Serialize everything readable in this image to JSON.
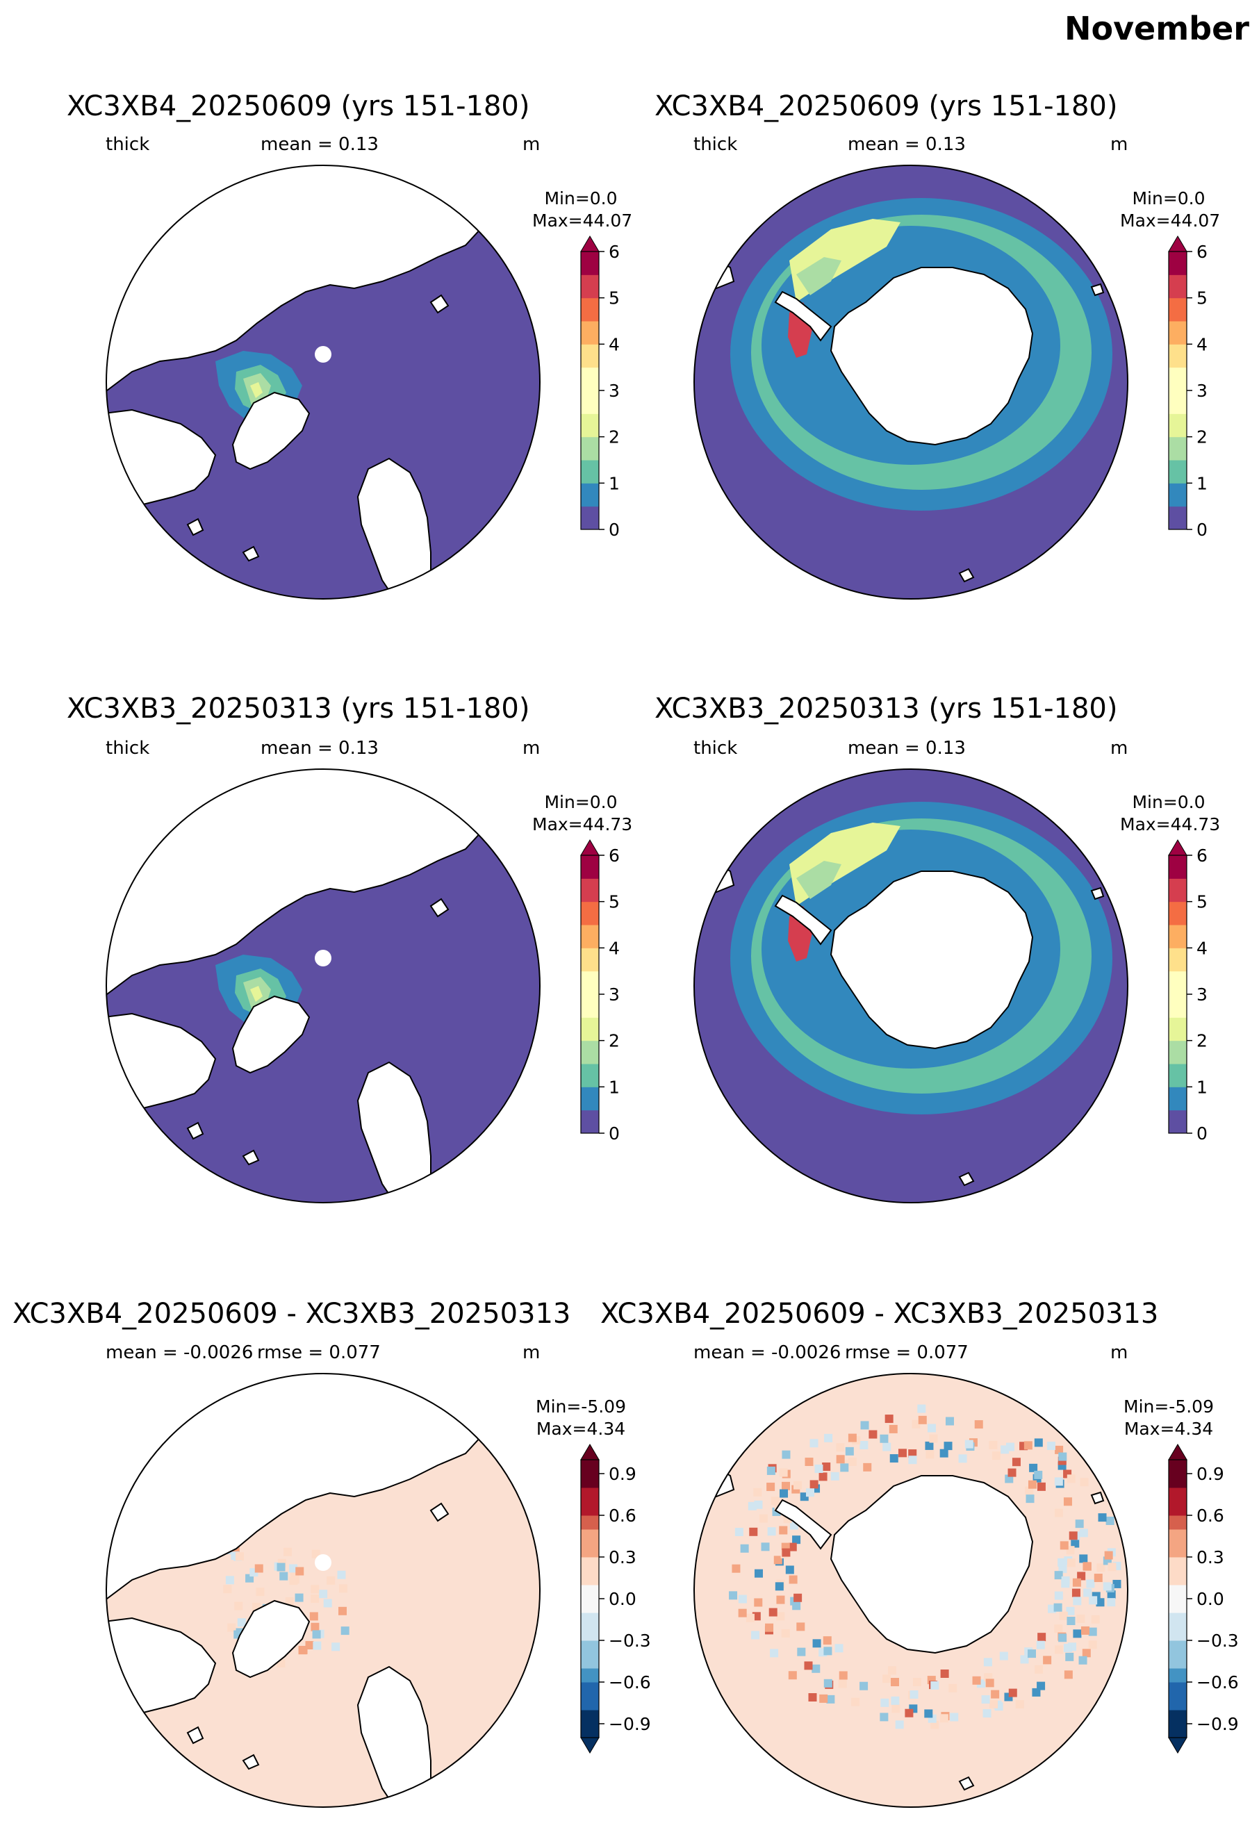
{
  "figure_title": "November",
  "chart_data": [
    {
      "type": "heatmap",
      "title": "XC3XB4_20250609 (yrs 151-180)",
      "hemisphere": "north",
      "variable_label": "thick",
      "stat_label": "mean = 0.13",
      "units_label": "m",
      "range_label": [
        "Min=0.0",
        "Max=44.07"
      ],
      "colormap": "Spectral_r",
      "colorbar_ticks": [
        "0",
        "1",
        "2",
        "3",
        "4",
        "5",
        "6"
      ],
      "colorbar_range": [
        0,
        6
      ],
      "colorbar_extend": "max"
    },
    {
      "type": "heatmap",
      "title": "XC3XB4_20250609 (yrs 151-180)",
      "hemisphere": "south",
      "variable_label": "thick",
      "stat_label": "mean = 0.13",
      "units_label": "m",
      "range_label": [
        "Min=0.0",
        "Max=44.07"
      ],
      "colormap": "Spectral_r",
      "colorbar_ticks": [
        "0",
        "1",
        "2",
        "3",
        "4",
        "5",
        "6"
      ],
      "colorbar_range": [
        0,
        6
      ],
      "colorbar_extend": "max"
    },
    {
      "type": "heatmap",
      "title": "XC3XB3_20250313 (yrs 151-180)",
      "hemisphere": "north",
      "variable_label": "thick",
      "stat_label": "mean = 0.13",
      "units_label": "m",
      "range_label": [
        "Min=0.0",
        "Max=44.73"
      ],
      "colormap": "Spectral_r",
      "colorbar_ticks": [
        "0",
        "1",
        "2",
        "3",
        "4",
        "5",
        "6"
      ],
      "colorbar_range": [
        0,
        6
      ],
      "colorbar_extend": "max"
    },
    {
      "type": "heatmap",
      "title": "XC3XB3_20250313 (yrs 151-180)",
      "hemisphere": "south",
      "variable_label": "thick",
      "stat_label": "mean = 0.13",
      "units_label": "m",
      "range_label": [
        "Min=0.0",
        "Max=44.73"
      ],
      "colormap": "Spectral_r",
      "colorbar_ticks": [
        "0",
        "1",
        "2",
        "3",
        "4",
        "5",
        "6"
      ],
      "colorbar_range": [
        0,
        6
      ],
      "colorbar_extend": "max"
    },
    {
      "type": "heatmap",
      "title": "XC3XB4_20250609 - XC3XB3_20250313",
      "hemisphere": "north",
      "stat_label": "mean = -0.0026",
      "rmse_label": "rmse = 0.077",
      "units_label": "m",
      "range_label": [
        "Min=-5.09",
        "Max=4.34"
      ],
      "colormap": "RdBu_r",
      "colorbar_ticks": [
        "−0.9",
        "−0.6",
        "−0.3",
        "0.0",
        "0.3",
        "0.6",
        "0.9"
      ],
      "colorbar_range": [
        -1,
        1
      ],
      "colorbar_extend": "both"
    },
    {
      "type": "heatmap",
      "title": "XC3XB4_20250609 - XC3XB3_20250313",
      "hemisphere": "south",
      "stat_label": "mean = -0.0026",
      "rmse_label": "rmse = 0.077",
      "units_label": "m",
      "range_label": [
        "Min=-5.09",
        "Max=4.34"
      ],
      "colormap": "RdBu_r",
      "colorbar_ticks": [
        "−0.9",
        "−0.6",
        "−0.3",
        "0.0",
        "0.3",
        "0.6",
        "0.9"
      ],
      "colorbar_range": [
        -1,
        1
      ],
      "colorbar_extend": "both"
    }
  ],
  "colors": {
    "spectral": [
      "#5e4fa2",
      "#3288bd",
      "#66c2a5",
      "#abdda4",
      "#e6f598",
      "#ffffbf",
      "#fee08b",
      "#fdae61",
      "#f46d43",
      "#d53e4f",
      "#9e0142"
    ],
    "rdbu": [
      "#053061",
      "#2166ac",
      "#4393c3",
      "#92c5de",
      "#d1e5f0",
      "#f7f7f7",
      "#fddbc7",
      "#f4a582",
      "#d6604d",
      "#b2182b",
      "#67001f"
    ],
    "land": "#ffffff",
    "coast": "#000000"
  }
}
